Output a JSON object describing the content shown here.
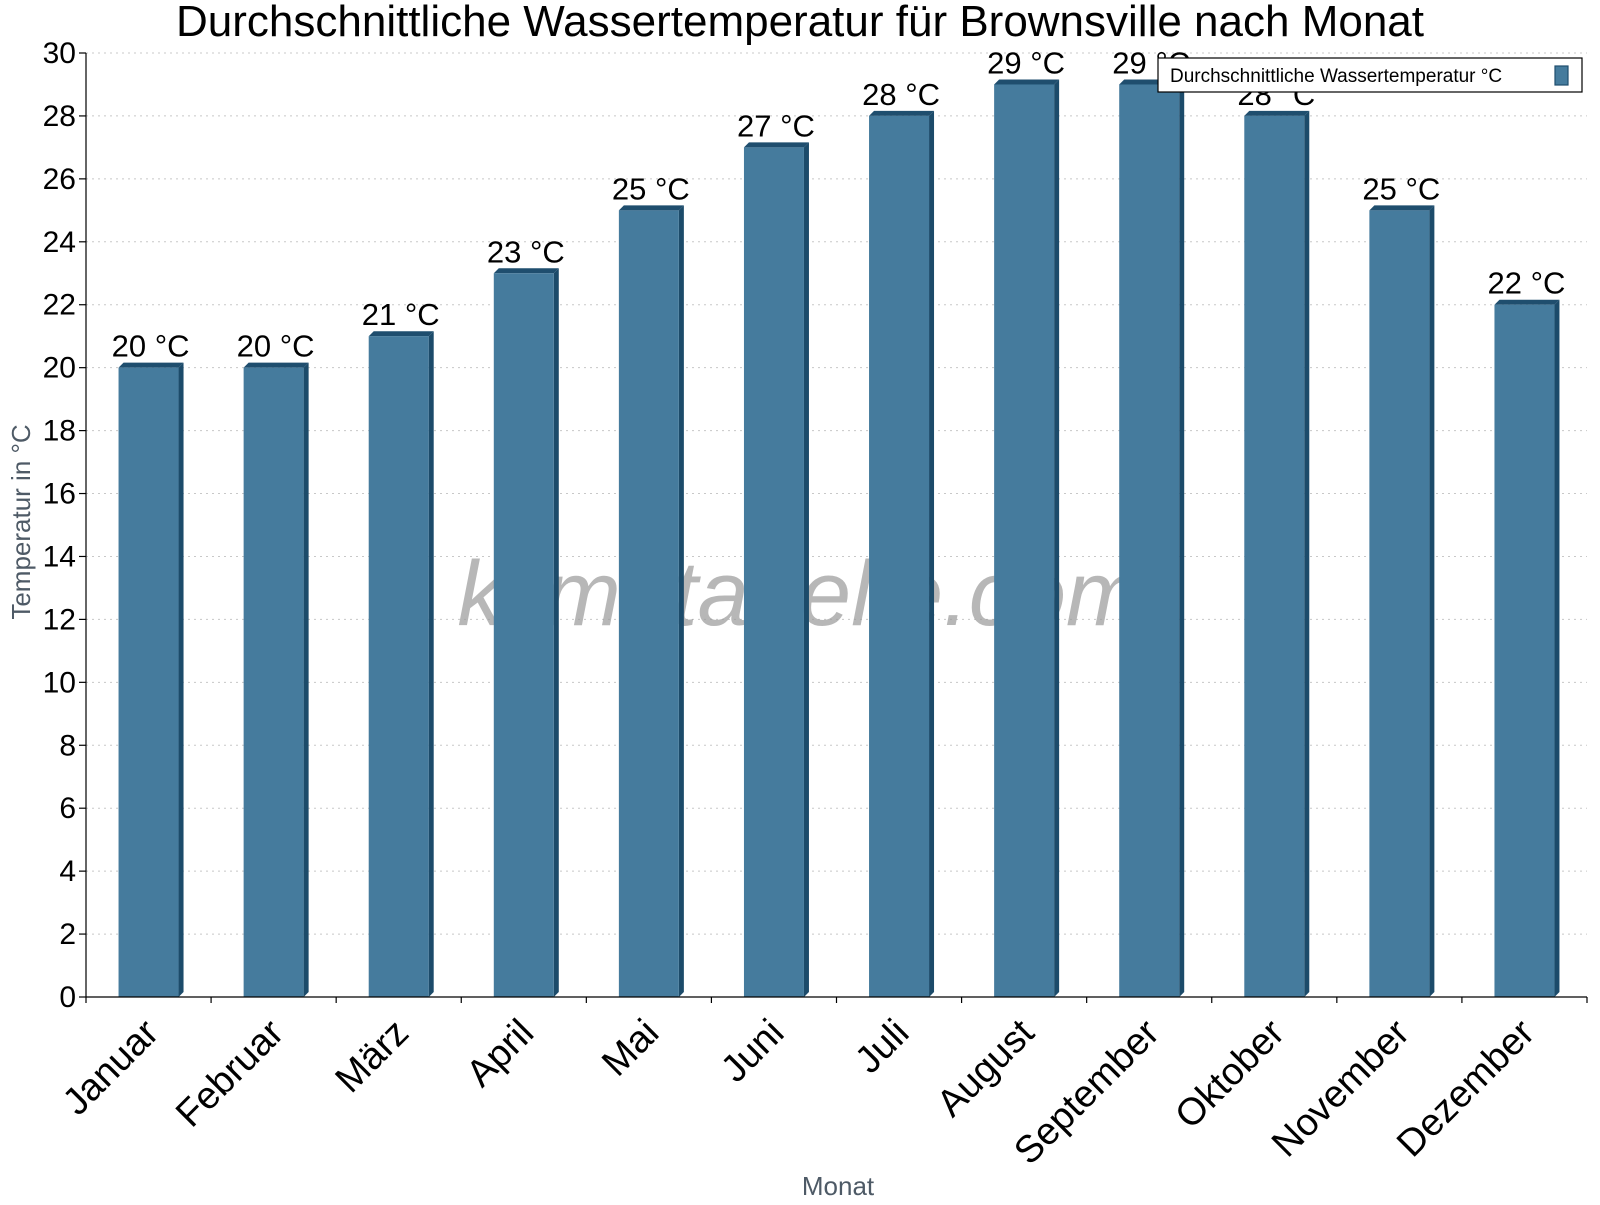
{
  "watermark": "klimatabelle.com",
  "chart_data": {
    "type": "bar",
    "title": "Durchschnittliche Wassertemperatur für Brownsville nach Monat",
    "xlabel": "Monat",
    "ylabel": "Temperatur in °C",
    "ylim": [
      0,
      30
    ],
    "yticks": [
      0,
      2,
      4,
      6,
      8,
      10,
      12,
      14,
      16,
      18,
      20,
      22,
      24,
      26,
      28,
      30
    ],
    "grid": true,
    "legend_position": "top-right",
    "categories": [
      "Januar",
      "Februar",
      "März",
      "April",
      "Mai",
      "Juni",
      "Juli",
      "August",
      "September",
      "Oktober",
      "November",
      "Dezember"
    ],
    "series": [
      {
        "name": "Durchschnittliche Wassertemperatur °C",
        "color": "#457b9d",
        "values": [
          20,
          20,
          21,
          23,
          25,
          27,
          28,
          29,
          29,
          28,
          25,
          22
        ],
        "labels": [
          "20 °C",
          "20 °C",
          "21 °C",
          "23 °C",
          "25 °C",
          "27 °C",
          "28 °C",
          "29 °C",
          "29 °C",
          "28 °C",
          "25 °C",
          "22 °C"
        ]
      }
    ]
  }
}
